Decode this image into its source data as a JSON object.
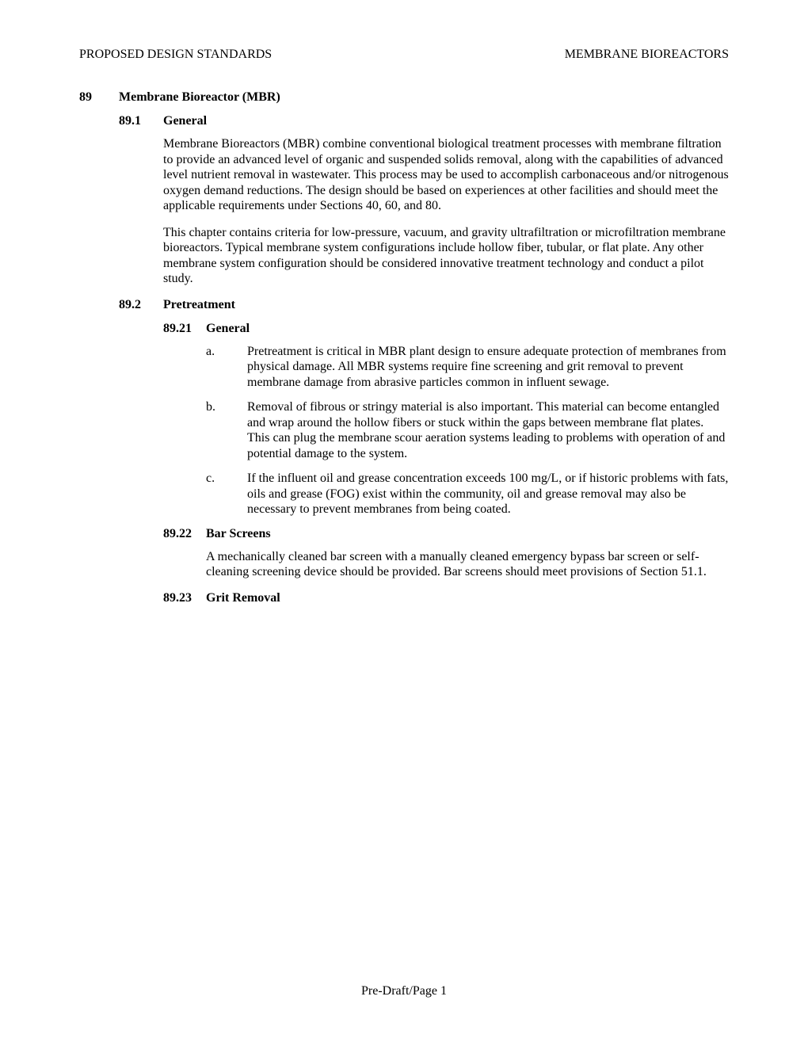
{
  "header": {
    "left": "PROPOSED DESIGN STANDARDS",
    "right": "MEMBRANE BIOREACTORS"
  },
  "sec89": {
    "num": "89",
    "title": "Membrane Bioreactor (MBR)"
  },
  "sec891": {
    "num": "89.1",
    "title": "General",
    "p1": "Membrane Bioreactors (MBR) combine conventional biological treatment processes with membrane filtration to provide an advanced level of organic and suspended solids removal, along with the capabilities of advanced level nutrient removal in wastewater. This process may be used to accomplish carbonaceous and/or nitrogenous oxygen demand reductions. The design should be based on experiences at other facilities and should meet the applicable requirements under Sections 40, 60, and 80.",
    "p2": "This chapter contains criteria for low-pressure, vacuum, and gravity ultrafiltration or microfiltration membrane bioreactors.  Typical membrane system configurations include hollow fiber, tubular, or flat plate.  Any other membrane system configuration should be considered innovative treatment technology and conduct a pilot study."
  },
  "sec892": {
    "num": "89.2",
    "title": "Pretreatment"
  },
  "sec8921": {
    "num": "89.21",
    "title": "General",
    "a_letter": "a.",
    "a": "Pretreatment is critical in MBR plant design to ensure adequate protection of membranes from physical damage. All MBR systems require fine screening and grit removal to prevent membrane damage from abrasive particles common in influent sewage.",
    "b_letter": "b.",
    "b": "Removal of fibrous or stringy material is also important. This material can become entangled and wrap around the hollow fibers or stuck within the gaps between membrane flat plates. This can plug the membrane scour aeration systems leading to problems with operation of and potential damage to the system.",
    "c_letter": "c.",
    "c": "If the influent oil and grease concentration exceeds 100 mg/L, or if historic problems with fats, oils and grease (FOG) exist within the community, oil and grease removal may also be necessary to prevent membranes from being coated."
  },
  "sec8922": {
    "num": "89.22",
    "title": "Bar Screens",
    "p1": "A mechanically cleaned bar screen with a manually cleaned emergency bypass bar screen or self-cleaning screening device should be provided.  Bar screens should meet provisions of Section 51.1."
  },
  "sec8923": {
    "num": "89.23",
    "title": "Grit Removal"
  },
  "footer": "Pre-Draft/Page 1"
}
